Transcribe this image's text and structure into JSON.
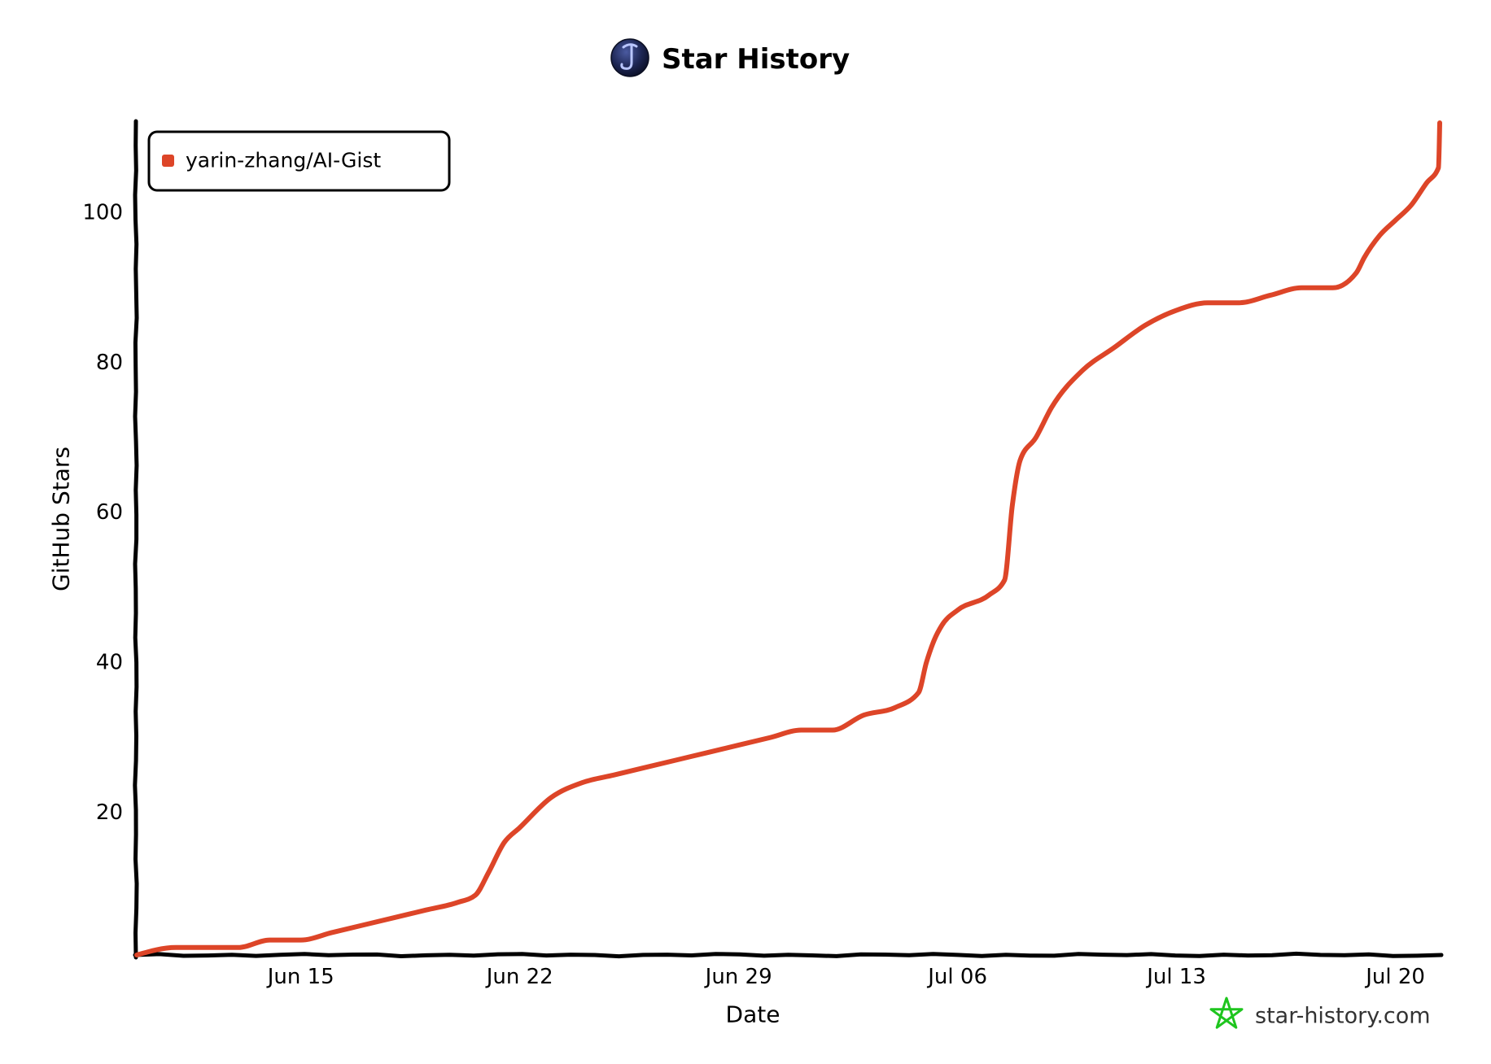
{
  "chart_data": {
    "type": "line",
    "title": "Star History",
    "xlabel": "Date",
    "ylabel": "GitHub Stars",
    "x_ticks": [
      "Jun 15",
      "Jun 22",
      "Jun 29",
      "Jul 06",
      "Jul 13",
      "Jul 20"
    ],
    "y_ticks": [
      20,
      40,
      60,
      80,
      100
    ],
    "xlim": [
      "Jun 09 18:00",
      "Jul 21 10:00"
    ],
    "ylim": [
      1,
      112
    ],
    "grid": false,
    "legend_position": "top-left",
    "series": [
      {
        "name": "yarin-zhang/AI-Gist",
        "color": "#dd4528",
        "points": [
          [
            "Jun 09 18:00",
            1
          ],
          [
            "Jun 11",
            2
          ],
          [
            "Jun 13",
            2
          ],
          [
            "Jun 14",
            3
          ],
          [
            "Jun 15",
            3
          ],
          [
            "Jun 16",
            4
          ],
          [
            "Jun 17",
            5
          ],
          [
            "Jun 18",
            6
          ],
          [
            "Jun 19",
            7
          ],
          [
            "Jun 20",
            8
          ],
          [
            "Jun 20 14:00",
            9
          ],
          [
            "Jun 21",
            12
          ],
          [
            "Jun 21 12:00",
            16
          ],
          [
            "Jun 22",
            18
          ],
          [
            "Jun 23",
            22
          ],
          [
            "Jun 24",
            24
          ],
          [
            "Jun 25",
            25
          ],
          [
            "Jun 26",
            26
          ],
          [
            "Jun 27",
            27
          ],
          [
            "Jun 28",
            28
          ],
          [
            "Jun 29",
            29
          ],
          [
            "Jun 30",
            30
          ],
          [
            "Jul 01",
            31
          ],
          [
            "Jul 02",
            31
          ],
          [
            "Jul 03",
            33
          ],
          [
            "Jul 04",
            34
          ],
          [
            "Jul 04 18:00",
            36
          ],
          [
            "Jul 05",
            40
          ],
          [
            "Jul 05 06:00",
            43
          ],
          [
            "Jul 05 12:00",
            45
          ],
          [
            "Jul 06",
            47
          ],
          [
            "Jul 07",
            49
          ],
          [
            "Jul 07 12:00",
            51
          ],
          [
            "Jul 07 18:00",
            61
          ],
          [
            "Jul 08",
            67
          ],
          [
            "Jul 08 12:00",
            70
          ],
          [
            "Jul 09",
            74
          ],
          [
            "Jul 10",
            79
          ],
          [
            "Jul 11",
            82
          ],
          [
            "Jul 12",
            85
          ],
          [
            "Jul 13",
            87
          ],
          [
            "Jul 14",
            88
          ],
          [
            "Jul 15",
            88
          ],
          [
            "Jul 16",
            89
          ],
          [
            "Jul 17",
            90
          ],
          [
            "Jul 18",
            90
          ],
          [
            "Jul 18 18:00",
            92
          ],
          [
            "Jul 19",
            94
          ],
          [
            "Jul 19 12:00",
            97
          ],
          [
            "Jul 20",
            99
          ],
          [
            "Jul 20 12:00",
            101
          ],
          [
            "Jul 21",
            104
          ],
          [
            "Jul 21 09:00",
            106
          ],
          [
            "Jul 21 10:00",
            112
          ]
        ]
      }
    ]
  },
  "watermark": {
    "text": "star-history.com"
  },
  "colors": {
    "axis": "#000000",
    "background": "#ffffff",
    "watermark_logo": "#1ec51e"
  },
  "icons": {
    "title_avatar": "owner-avatar",
    "watermark_logo": "star-history-logo-icon"
  }
}
